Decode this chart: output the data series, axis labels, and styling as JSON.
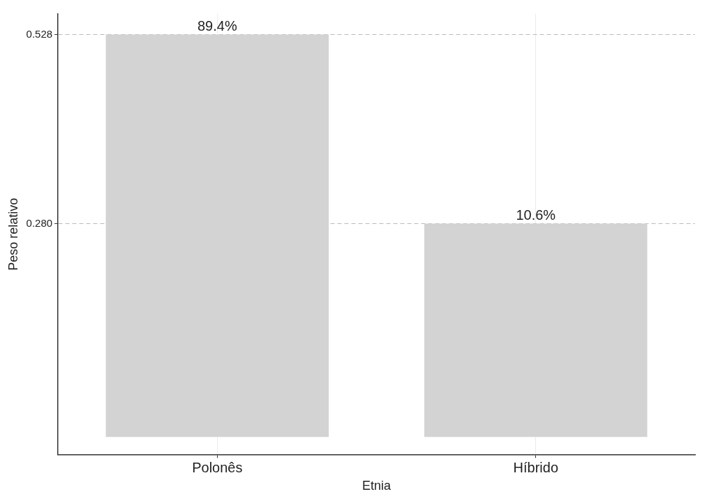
{
  "chart_data": {
    "type": "bar",
    "xlabel": "Etnia",
    "ylabel": "Peso relativo",
    "categories": [
      "Polonês",
      "Híbrido"
    ],
    "values": [
      0.528,
      0.28
    ],
    "color": "#d3d3d3",
    "annotations": [
      {
        "text": "89.4%",
        "x": "Polonês",
        "y": 0.528
      },
      {
        "text": "10.6%",
        "x": "Híbrido",
        "y": 0.28
      }
    ],
    "ylim": [
      -0.023,
      0.555
    ],
    "yticks": [
      {
        "value": 0.28,
        "label": "0.280"
      },
      {
        "value": 0.528,
        "label": "0.528"
      }
    ],
    "grid": true
  }
}
